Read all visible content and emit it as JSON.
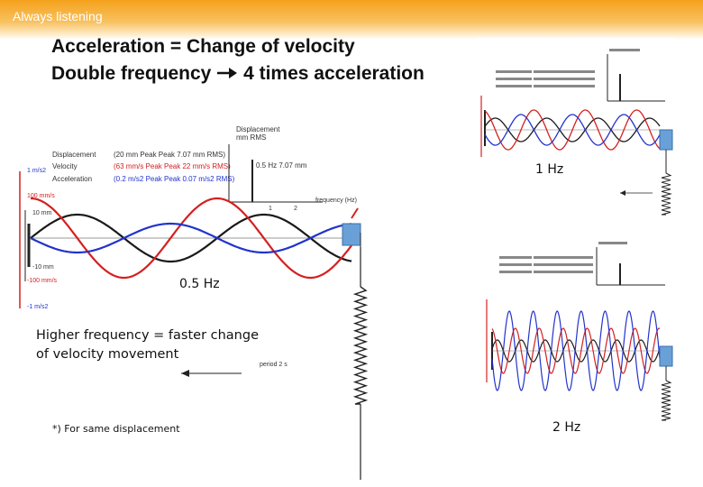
{
  "header": {
    "brand": "Always listening"
  },
  "title": {
    "line1": "Acceleration = Change of velocity",
    "line2_left": "Double frequency",
    "line2_right": "4 times acceleration",
    "superscript": "*)"
  },
  "left_panel": {
    "legend": {
      "displacement": {
        "label": "Displacement",
        "value": "(20 mm Peak Peak 7.07 mm RMS)"
      },
      "velocity": {
        "label": "Velocity",
        "value": "(63 mm/s Peak Peak 22 mm/s RMS)"
      },
      "acceleration": {
        "label": "Acceleration",
        "value": "(0.2 m/s2 Peak Peak 0.07 m/s2 RMS)"
      }
    },
    "spectrum": {
      "ylabel_1": "Displacement",
      "ylabel_2": "mm RMS",
      "peak_label": "0.5 Hz 7.07 mm",
      "tick_1": "1",
      "tick_2": "2",
      "xlabel": "frequency (Hz)"
    },
    "axis_labels": {
      "acc_top": "1 m/s2",
      "vel_top": "100 mm/s",
      "disp_top": "10 mm",
      "disp_bottom": "-10 mm",
      "vel_bottom": "-100 mm/s",
      "acc_bottom": "-1 m/s2"
    },
    "period_label": "period 2 s",
    "frequency_caption": "0.5 Hz"
  },
  "right_top_panel": {
    "frequency_caption": "1 Hz"
  },
  "right_bottom_panel": {
    "frequency_caption": "2 Hz"
  },
  "note": {
    "line1": "Higher frequency = faster change",
    "line2": "of velocity movement"
  },
  "footnote": "*) For same displacement",
  "colors": {
    "displacement": "#1a1a1a",
    "velocity": "#d42020",
    "acceleration": "#2233cc",
    "box": "#6aa0d8",
    "axis_red": "#d42020",
    "banner": "#f5a21c"
  }
}
